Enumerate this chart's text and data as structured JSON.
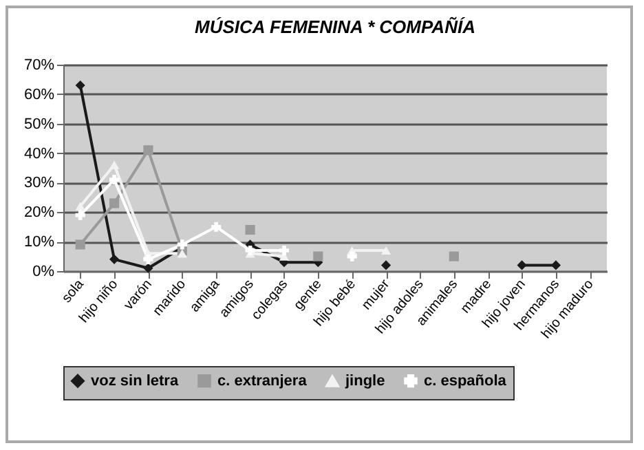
{
  "chart_data": {
    "type": "line",
    "title": "MÚSICA FEMENINA * COMPAÑÍA",
    "categories": [
      "sola",
      "hijo niño",
      "varón",
      "marido",
      "amiga",
      "amigos",
      "colegas",
      "gente",
      "hijo bebé",
      "mujer",
      "hijo adoles",
      "animales",
      "madre",
      "hijo joven",
      "hermanos",
      "hijo maduro"
    ],
    "series": [
      {
        "name": "voz sin letra",
        "color": "#1a1a1a",
        "marker": "diamond",
        "values": [
          63,
          4,
          1,
          8,
          null,
          9,
          3,
          3,
          null,
          2,
          null,
          null,
          null,
          2,
          2,
          null
        ]
      },
      {
        "name": "c. extranjera",
        "color": "#9a9a9a",
        "marker": "square",
        "values": [
          9,
          23,
          41,
          7,
          null,
          14,
          null,
          5,
          null,
          null,
          null,
          5,
          null,
          null,
          null,
          null
        ]
      },
      {
        "name": "jingle",
        "color": "#f2f2f2",
        "marker": "triangle",
        "values": [
          22,
          36,
          6,
          6,
          null,
          6,
          5,
          null,
          7,
          7,
          null,
          null,
          null,
          null,
          null,
          null
        ]
      },
      {
        "name": "c. española",
        "color": "#ffffff",
        "marker": "cross",
        "values": [
          19,
          31,
          4,
          9,
          15,
          7,
          7,
          null,
          5,
          null,
          null,
          null,
          null,
          null,
          null,
          null
        ]
      }
    ],
    "ylim": [
      0,
      70
    ],
    "yticks": [
      {
        "value": 0,
        "label": "0%"
      },
      {
        "value": 10,
        "label": "10%"
      },
      {
        "value": 20,
        "label": "20%"
      },
      {
        "value": 30,
        "label": "30%"
      },
      {
        "value": 40,
        "label": "40%"
      },
      {
        "value": 50,
        "label": "50%"
      },
      {
        "value": 60,
        "label": "60%"
      },
      {
        "value": 70,
        "label": "70%"
      }
    ],
    "grid": "y",
    "legend": "bottom"
  }
}
